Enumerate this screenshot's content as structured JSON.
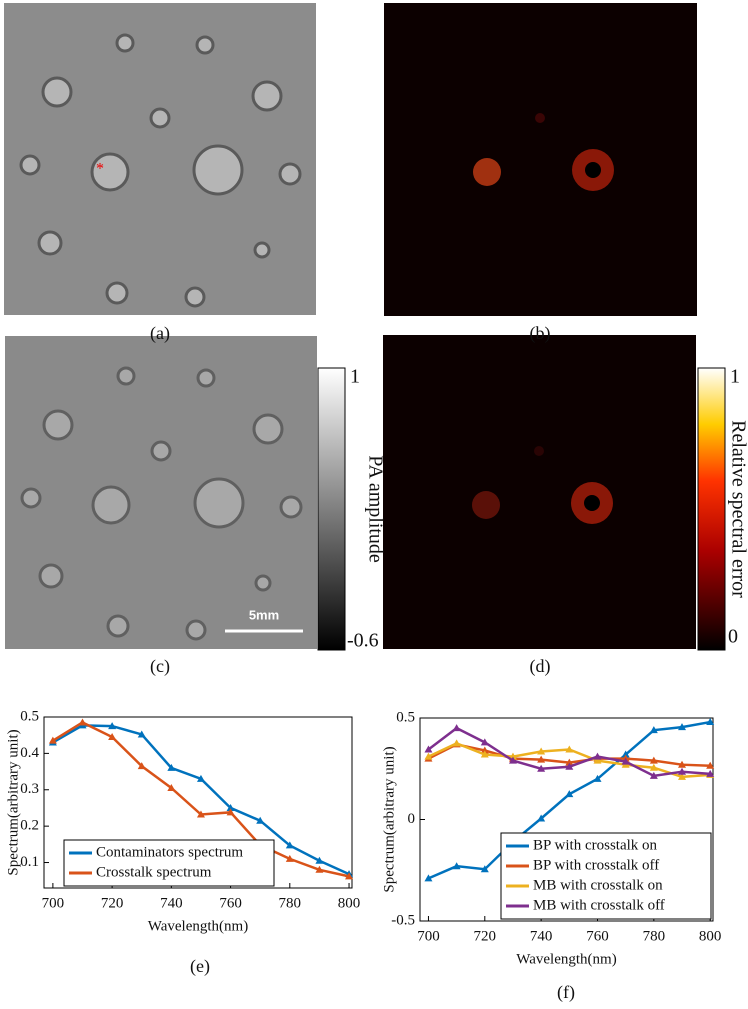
{
  "panels": [
    "(a)",
    "(b)",
    "(c)",
    "(d)",
    "(e)",
    "(f)"
  ],
  "scale_bar": "5mm",
  "colorbars": [
    {
      "label": "PA amplitude",
      "ticks": [
        1,
        -0.6
      ]
    },
    {
      "label": "Relative spectral error",
      "ticks": [
        1,
        0
      ]
    }
  ],
  "chart_data": [
    {
      "type": "line",
      "xlabel": "Wavelength(nm)",
      "ylabel": "Spectrum(arbitrary unit)",
      "x": [
        700,
        710,
        720,
        730,
        740,
        750,
        760,
        770,
        780,
        790,
        800
      ],
      "xlim": [
        697,
        801
      ],
      "xticks": [
        700,
        720,
        740,
        760,
        780,
        800
      ],
      "ylim": [
        0.03,
        0.5
      ],
      "yticks": [
        0.1,
        0.2,
        0.3,
        0.4,
        0.5
      ],
      "legend": "lower left",
      "series": [
        {
          "name": "Contaminators spectrum",
          "color": "#0072bd",
          "values": [
            0.43,
            0.477,
            0.475,
            0.452,
            0.36,
            0.33,
            0.25,
            0.215,
            0.147,
            0.105,
            0.068
          ]
        },
        {
          "name": "Crosstalk spectrum",
          "color": "#d95319",
          "values": [
            0.435,
            0.485,
            0.445,
            0.365,
            0.305,
            0.232,
            0.238,
            0.148,
            0.11,
            0.08,
            0.062
          ]
        }
      ]
    },
    {
      "type": "line",
      "xlabel": "Wavelength(nm)",
      "ylabel": "Spectrum(arbitrary unit)",
      "x": [
        700,
        710,
        720,
        730,
        740,
        750,
        760,
        770,
        780,
        790,
        800
      ],
      "xlim": [
        697,
        801
      ],
      "xticks": [
        700,
        720,
        740,
        760,
        780,
        800
      ],
      "ylim": [
        -0.5,
        0.5
      ],
      "yticks": [
        -0.5,
        0,
        0.5
      ],
      "legend": "lower right",
      "series": [
        {
          "name": "BP with crosstalk on",
          "color": "#0072bd",
          "values": [
            -0.29,
            -0.23,
            -0.245,
            -0.11,
            0.005,
            0.125,
            0.2,
            0.32,
            0.44,
            0.455,
            0.48
          ]
        },
        {
          "name": "BP with crosstalk off",
          "color": "#d95319",
          "values": [
            0.3,
            0.37,
            0.34,
            0.3,
            0.295,
            0.28,
            0.3,
            0.3,
            0.29,
            0.27,
            0.265
          ]
        },
        {
          "name": "MB with crosstalk on",
          "color": "#edb120",
          "values": [
            0.31,
            0.375,
            0.32,
            0.31,
            0.335,
            0.345,
            0.29,
            0.27,
            0.255,
            0.21,
            0.22
          ]
        },
        {
          "name": "MB with crosstalk off",
          "color": "#7e2f8e",
          "values": [
            0.345,
            0.45,
            0.38,
            0.29,
            0.25,
            0.26,
            0.31,
            0.285,
            0.215,
            0.235,
            0.225
          ]
        }
      ]
    }
  ]
}
